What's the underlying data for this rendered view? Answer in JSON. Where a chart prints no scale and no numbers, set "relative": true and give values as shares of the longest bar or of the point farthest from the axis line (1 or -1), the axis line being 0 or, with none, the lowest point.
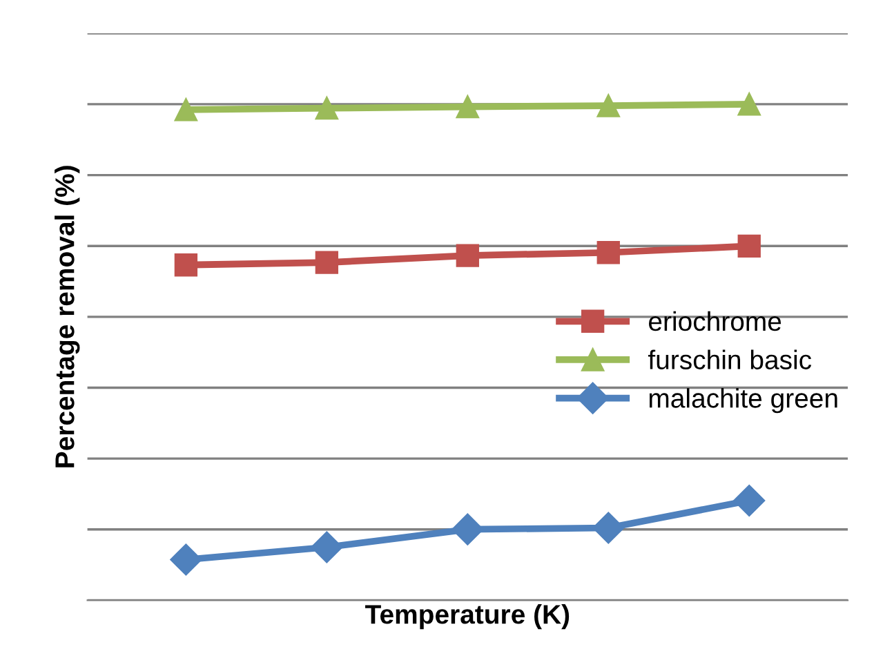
{
  "chart_data": {
    "type": "line",
    "relative": true,
    "xlabel": "Temperature (K)",
    "ylabel": "Percentage removal (%)",
    "categories": [
      null,
      null,
      null,
      null,
      null
    ],
    "series": [
      {
        "name": "eriochrome",
        "color": "#c0504d",
        "marker": "square",
        "values": [
          0.676,
          0.681,
          0.695,
          0.701,
          0.714
        ]
      },
      {
        "name": "furschin basic",
        "color": "#9bbb59",
        "marker": "triangle",
        "values": [
          0.989,
          0.992,
          0.995,
          0.997,
          1
        ]
      },
      {
        "name": "malachite green",
        "color": "#4f81bd",
        "marker": "diamond",
        "values": [
          0.082,
          0.107,
          0.143,
          0.146,
          0.201
        ]
      }
    ],
    "grid": "y",
    "legend": "right",
    "tick_labels": false
  }
}
